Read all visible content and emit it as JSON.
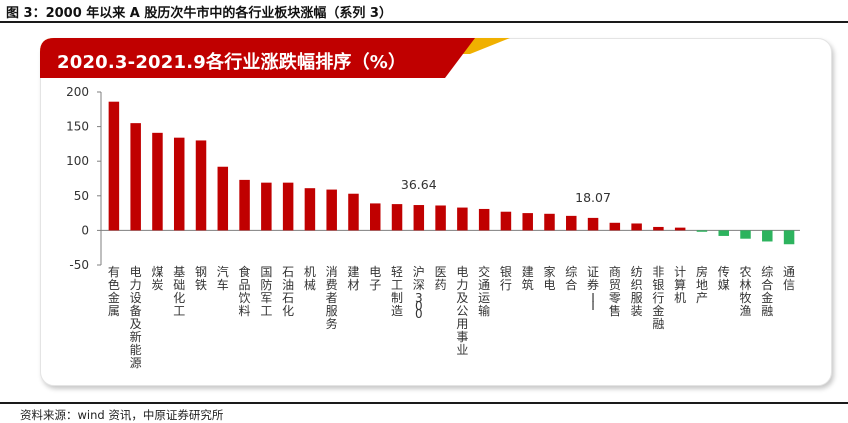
{
  "figure": {
    "caption": "图 3：2000 年以来 A 股历次牛市中的各行业板块涨幅（系列 3）",
    "source": "资料来源：wind 资讯，中原证券研究所"
  },
  "colors": {
    "positive": "#c00000",
    "negative": "#2db35e",
    "banner": "#c00000",
    "banner_accent": "#f0b000"
  },
  "chart_data": {
    "type": "bar",
    "title": "2020.3-2021.9各行业涨跌幅排序（%）",
    "xlabel": "",
    "ylabel": "",
    "ylim": [
      -50,
      200
    ],
    "yticks": [
      -50,
      0,
      50,
      100,
      150,
      200
    ],
    "categories": [
      "有色金属",
      "电力设备及新能源",
      "煤炭",
      "基础化工",
      "钢铁",
      "汽车",
      "食品饮料",
      "国防军工",
      "石油石化",
      "机械",
      "消费者服务",
      "建材",
      "电子",
      "轻工制造",
      "沪深300",
      "医药",
      "电力及公用事业",
      "交通运输",
      "银行",
      "建筑",
      "家电",
      "综合",
      "证券II",
      "商贸零售",
      "纺织服装",
      "非银行金融",
      "计算机",
      "房地产",
      "传媒",
      "农林牧渔",
      "综合金融",
      "通信"
    ],
    "values": [
      186,
      155,
      141,
      134,
      130,
      92,
      73,
      69,
      69,
      61,
      59,
      53,
      39,
      38,
      36.64,
      36,
      33,
      31,
      27,
      25,
      24,
      21,
      18.07,
      11,
      10,
      5,
      4,
      -2,
      -8,
      -12,
      -16,
      -20
    ],
    "data_labels": [
      {
        "category": "沪深300",
        "text": "36.64"
      },
      {
        "category": "证券II",
        "text": "18.07"
      }
    ],
    "grid": false,
    "legend": "none"
  }
}
